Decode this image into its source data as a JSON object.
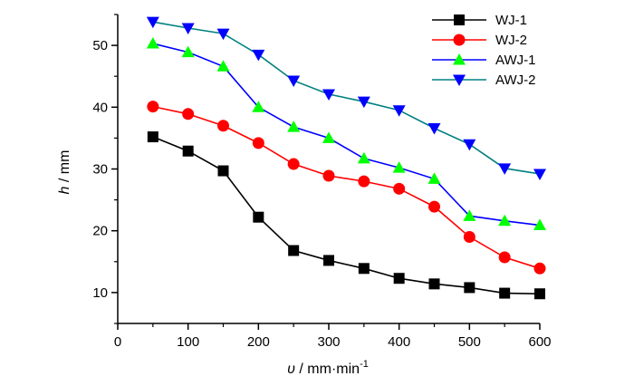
{
  "chart_data": {
    "type": "line",
    "title": "",
    "xlabel": {
      "var": "υ",
      "unit": " / mm·min",
      "sup": "-1"
    },
    "ylabel": {
      "var": "h",
      "unit": " / mm"
    },
    "xlim": [
      0,
      600
    ],
    "ylim": [
      5,
      55
    ],
    "xticks": [
      0,
      100,
      200,
      300,
      400,
      500,
      600
    ],
    "yticks": [
      10,
      20,
      30,
      40,
      50
    ],
    "x": [
      50,
      100,
      150,
      200,
      250,
      300,
      350,
      400,
      450,
      500,
      550,
      600
    ],
    "grid": false,
    "legend": "top-right",
    "series": [
      {
        "name": "WJ-1",
        "color": "#000000",
        "marker": "square",
        "values": [
          35.2,
          32.9,
          29.7,
          22.2,
          16.8,
          15.2,
          13.9,
          12.3,
          11.4,
          10.8,
          9.9,
          9.8
        ]
      },
      {
        "name": "WJ-2",
        "color": "#ff0000",
        "marker": "circle",
        "values": [
          40.1,
          38.9,
          37.0,
          34.2,
          30.8,
          28.9,
          28.0,
          26.8,
          23.9,
          19.0,
          15.7,
          13.9
        ]
      },
      {
        "name": "AWJ-1",
        "color": "#0000ff",
        "marker": "triangle-up",
        "marker_color": "#00ff00",
        "values": [
          50.3,
          48.9,
          46.6,
          40.0,
          36.8,
          35.0,
          31.7,
          30.2,
          28.4,
          22.4,
          21.6,
          20.9
        ]
      },
      {
        "name": "AWJ-2",
        "color": "#008080",
        "marker": "triangle-down",
        "marker_color": "#0000ff",
        "values": [
          53.8,
          52.8,
          51.9,
          48.5,
          44.3,
          42.1,
          40.9,
          39.5,
          36.6,
          34.0,
          30.1,
          29.2
        ]
      }
    ]
  }
}
